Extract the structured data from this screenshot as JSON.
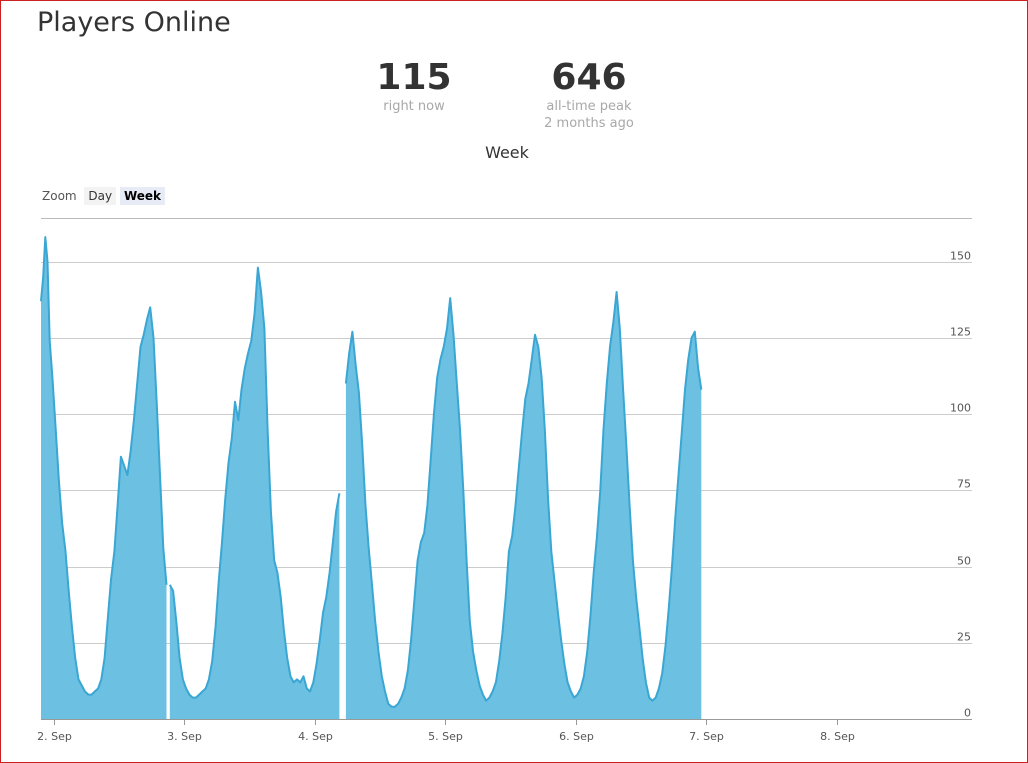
{
  "page": {
    "title": "Players Online"
  },
  "stats": {
    "now": {
      "value": "115",
      "label": "right now"
    },
    "peak": {
      "value": "646",
      "label": "all-time peak",
      "when": "2 months ago"
    }
  },
  "zoom": {
    "label": "Zoom",
    "options": [
      "Day",
      "Week"
    ],
    "selected": "Week"
  },
  "colors": {
    "area_fill": "#6cc0e1",
    "line": "#3aa6d4",
    "grid": "#cccccc"
  },
  "chart_data": {
    "type": "area",
    "title": "Week",
    "xlabel": "",
    "ylabel": "",
    "ylim": [
      0,
      160
    ],
    "xlim": [
      0,
      168.9
    ],
    "x_unit": "hours since the start of 2 Sep",
    "grid": true,
    "y_ticks": [
      0,
      25,
      50,
      75,
      100,
      125,
      150
    ],
    "x_ticks": [
      {
        "x": 0,
        "label": "2. Sep"
      },
      {
        "x": 24,
        "label": "3. Sep"
      },
      {
        "x": 48,
        "label": "4. Sep"
      },
      {
        "x": 72,
        "label": "5. Sep"
      },
      {
        "x": 96,
        "label": "6. Sep"
      },
      {
        "x": 120,
        "label": "7. Sep"
      },
      {
        "x": 144,
        "label": "8. Sep"
      }
    ],
    "series": [
      {
        "name": "",
        "segments": [
          [
            [
              -2.4,
              137
            ],
            [
              -2.0,
              145
            ],
            [
              -1.6,
              158
            ],
            [
              -1.2,
              150
            ],
            [
              -0.8,
              124
            ],
            [
              -0.3,
              112
            ],
            [
              0.3,
              95
            ],
            [
              0.9,
              78
            ],
            [
              1.5,
              64
            ],
            [
              2.1,
              55
            ],
            [
              2.7,
              42
            ],
            [
              3.3,
              30
            ],
            [
              3.9,
              20
            ],
            [
              4.5,
              13
            ],
            [
              5.1,
              11
            ],
            [
              5.7,
              9
            ],
            [
              6.3,
              8
            ],
            [
              6.9,
              8
            ],
            [
              7.5,
              9
            ],
            [
              8.1,
              10
            ],
            [
              8.7,
              13
            ],
            [
              9.3,
              20
            ],
            [
              9.9,
              33
            ],
            [
              10.5,
              46
            ],
            [
              11.1,
              55
            ],
            [
              11.7,
              70
            ],
            [
              12.3,
              86
            ],
            [
              12.9,
              83
            ],
            [
              13.5,
              80
            ],
            [
              14.1,
              88
            ],
            [
              14.7,
              98
            ],
            [
              15.3,
              110
            ],
            [
              15.9,
              122
            ],
            [
              16.5,
              126
            ],
            [
              17.1,
              131
            ],
            [
              17.7,
              135
            ],
            [
              18.3,
              125
            ],
            [
              18.9,
              103
            ],
            [
              19.5,
              80
            ],
            [
              20.1,
              56
            ],
            [
              20.7,
              44
            ]
          ],
          [
            [
              21.3,
              44
            ],
            [
              21.9,
              42
            ],
            [
              22.5,
              32
            ],
            [
              23.1,
              20
            ],
            [
              23.7,
              13
            ],
            [
              24.3,
              10
            ],
            [
              24.9,
              8
            ],
            [
              25.5,
              7
            ],
            [
              26.1,
              7
            ],
            [
              26.7,
              8
            ],
            [
              27.3,
              9
            ],
            [
              27.9,
              10
            ],
            [
              28.5,
              13
            ],
            [
              29.1,
              19
            ],
            [
              29.7,
              30
            ],
            [
              30.3,
              45
            ],
            [
              30.9,
              58
            ],
            [
              31.5,
              72
            ],
            [
              32.1,
              84
            ],
            [
              32.7,
              92
            ],
            [
              33.3,
              104
            ],
            [
              33.9,
              98
            ],
            [
              34.5,
              108
            ],
            [
              35.1,
              115
            ],
            [
              35.7,
              120
            ],
            [
              36.3,
              124
            ],
            [
              36.9,
              133
            ],
            [
              37.5,
              148
            ],
            [
              38.1,
              140
            ],
            [
              38.7,
              128
            ],
            [
              39.3,
              95
            ],
            [
              39.9,
              68
            ],
            [
              40.5,
              52
            ],
            [
              41.1,
              48
            ],
            [
              41.7,
              40
            ],
            [
              42.3,
              29
            ],
            [
              42.9,
              20
            ],
            [
              43.5,
              14
            ],
            [
              44.1,
              12
            ],
            [
              44.7,
              13
            ],
            [
              45.3,
              12
            ],
            [
              45.9,
              14
            ],
            [
              46.5,
              10
            ],
            [
              47.1,
              9
            ],
            [
              47.7,
              12
            ],
            [
              48.3,
              18
            ],
            [
              48.9,
              26
            ],
            [
              49.5,
              35
            ],
            [
              50.1,
              40
            ],
            [
              50.7,
              48
            ],
            [
              51.3,
              58
            ],
            [
              51.9,
              68
            ],
            [
              52.5,
              74
            ]
          ],
          [
            [
              53.7,
              110
            ],
            [
              54.3,
              120
            ],
            [
              54.9,
              127
            ],
            [
              55.5,
              116
            ],
            [
              56.1,
              107
            ],
            [
              56.7,
              90
            ],
            [
              57.3,
              70
            ],
            [
              57.9,
              56
            ],
            [
              58.5,
              44
            ],
            [
              59.1,
              32
            ],
            [
              59.7,
              22
            ],
            [
              60.3,
              14
            ],
            [
              60.9,
              9
            ],
            [
              61.5,
              5
            ],
            [
              62.1,
              4
            ],
            [
              62.7,
              4
            ],
            [
              63.3,
              5
            ],
            [
              63.9,
              7
            ],
            [
              64.5,
              10
            ],
            [
              65.1,
              16
            ],
            [
              65.7,
              26
            ],
            [
              66.3,
              39
            ],
            [
              66.9,
              52
            ],
            [
              67.5,
              58
            ],
            [
              68.1,
              61
            ],
            [
              68.7,
              70
            ],
            [
              69.3,
              85
            ],
            [
              69.9,
              100
            ],
            [
              70.5,
              112
            ],
            [
              71.1,
              118
            ],
            [
              71.7,
              122
            ],
            [
              72.3,
              128
            ],
            [
              72.9,
              138
            ],
            [
              73.5,
              126
            ],
            [
              74.1,
              110
            ],
            [
              74.7,
              95
            ],
            [
              75.3,
              75
            ],
            [
              75.9,
              52
            ],
            [
              76.5,
              32
            ],
            [
              77.1,
              22
            ],
            [
              77.7,
              16
            ],
            [
              78.3,
              11
            ],
            [
              78.9,
              8
            ],
            [
              79.5,
              6
            ],
            [
              80.1,
              7
            ],
            [
              80.7,
              9
            ],
            [
              81.3,
              12
            ],
            [
              81.9,
              19
            ],
            [
              82.5,
              28
            ],
            [
              83.1,
              40
            ],
            [
              83.7,
              55
            ],
            [
              84.3,
              60
            ],
            [
              84.9,
              70
            ],
            [
              85.5,
              82
            ],
            [
              86.1,
              94
            ],
            [
              86.7,
              105
            ],
            [
              87.3,
              110
            ],
            [
              87.9,
              118
            ],
            [
              88.5,
              126
            ],
            [
              89.1,
              122
            ],
            [
              89.7,
              112
            ],
            [
              90.3,
              95
            ],
            [
              90.9,
              72
            ],
            [
              91.5,
              55
            ],
            [
              92.1,
              45
            ],
            [
              92.7,
              35
            ],
            [
              93.3,
              26
            ],
            [
              93.9,
              18
            ],
            [
              94.5,
              12
            ],
            [
              95.1,
              9
            ],
            [
              95.7,
              7
            ],
            [
              96.3,
              8
            ],
            [
              96.9,
              10
            ],
            [
              97.5,
              14
            ],
            [
              98.1,
              22
            ],
            [
              98.7,
              34
            ],
            [
              99.3,
              48
            ],
            [
              99.9,
              60
            ],
            [
              100.5,
              75
            ],
            [
              101.1,
              95
            ],
            [
              101.7,
              110
            ],
            [
              102.3,
              122
            ],
            [
              102.9,
              130
            ],
            [
              103.5,
              140
            ],
            [
              104.1,
              128
            ],
            [
              104.7,
              108
            ],
            [
              105.3,
              90
            ],
            [
              105.9,
              70
            ],
            [
              106.5,
              52
            ],
            [
              107.1,
              40
            ],
            [
              107.7,
              30
            ],
            [
              108.3,
              20
            ],
            [
              108.9,
              12
            ],
            [
              109.5,
              7
            ],
            [
              110.1,
              6
            ],
            [
              110.7,
              7
            ],
            [
              111.3,
              10
            ],
            [
              111.9,
              15
            ],
            [
              112.5,
              24
            ],
            [
              113.1,
              36
            ],
            [
              113.7,
              50
            ],
            [
              114.3,
              66
            ],
            [
              114.9,
              80
            ],
            [
              115.5,
              94
            ],
            [
              116.1,
              108
            ],
            [
              116.7,
              118
            ],
            [
              117.3,
              125
            ],
            [
              117.9,
              127
            ],
            [
              118.5,
              115
            ],
            [
              119.1,
              108
            ]
          ]
        ],
        "gaps": [
          [
            20.7,
            21.3
          ],
          [
            52.5,
            53.7
          ],
          [
            119.1,
            120.3
          ]
        ]
      }
    ]
  }
}
